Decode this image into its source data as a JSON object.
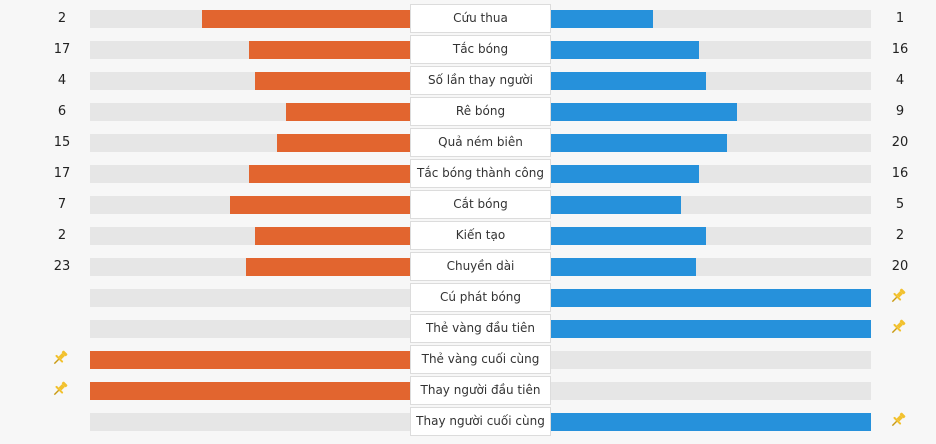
{
  "colors": {
    "home": "#e2652f",
    "away": "#2691db",
    "track": "#e6e6e6",
    "pin": "#f2c12e"
  },
  "max_value": 23,
  "stats": [
    {
      "label": "Cứu thua",
      "home": "2",
      "away": "1",
      "home_level": 0.67,
      "away_level": 0.33
    },
    {
      "label": "Tắc bóng",
      "home": "17",
      "away": "16",
      "home_level": 0.52,
      "away_level": 0.48
    },
    {
      "label": "Số lần thay người",
      "home": "4",
      "away": "4",
      "home_level": 0.5,
      "away_level": 0.5
    },
    {
      "label": "Rê bóng",
      "home": "6",
      "away": "9",
      "home_level": 0.4,
      "away_level": 0.6
    },
    {
      "label": "Quả ném biên",
      "home": "15",
      "away": "20",
      "home_level": 0.43,
      "away_level": 0.57
    },
    {
      "label": "Tắc bóng thành công",
      "home": "17",
      "away": "16",
      "home_level": 0.52,
      "away_level": 0.48
    },
    {
      "label": "Cắt bóng",
      "home": "7",
      "away": "5",
      "home_level": 0.58,
      "away_level": 0.42
    },
    {
      "label": "Kiến tạo",
      "home": "2",
      "away": "2",
      "home_level": 0.5,
      "away_level": 0.5
    },
    {
      "label": "Chuyền dài",
      "home": "23",
      "away": "20",
      "home_level": 0.53,
      "away_level": 0.47
    },
    {
      "label": "Cú phát bóng",
      "home": "",
      "away": "",
      "home_level": 0,
      "away_level": 1,
      "home_icon": "",
      "away_icon": "pin-icon"
    },
    {
      "label": "Thẻ vàng đầu tiên",
      "home": "",
      "away": "",
      "home_level": 0,
      "away_level": 1,
      "home_icon": "",
      "away_icon": "pin-icon"
    },
    {
      "label": "Thẻ vàng cuối cùng",
      "home": "",
      "away": "",
      "home_level": 1,
      "away_level": 0,
      "home_icon": "pin-icon",
      "away_icon": ""
    },
    {
      "label": "Thay người đầu tiên",
      "home": "",
      "away": "",
      "home_level": 1,
      "away_level": 0,
      "home_icon": "pin-icon",
      "away_icon": ""
    },
    {
      "label": "Thay người cuối cùng",
      "home": "",
      "away": "",
      "home_level": 0,
      "away_level": 1,
      "home_icon": "",
      "away_icon": "pin-icon"
    }
  ]
}
